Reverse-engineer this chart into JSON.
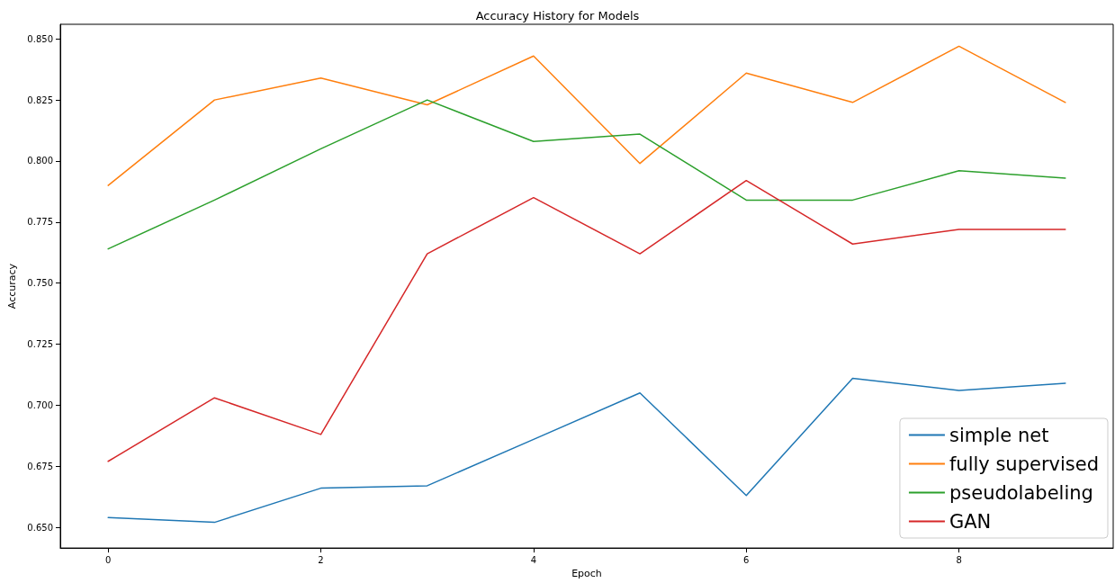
{
  "chart_data": {
    "type": "line",
    "title": "Accuracy History for Models",
    "xlabel": "Epoch",
    "ylabel": "Accuracy",
    "x": [
      0,
      1,
      2,
      3,
      4,
      5,
      6,
      7,
      8,
      9
    ],
    "series": [
      {
        "name": "simple net",
        "color": "#1f77b4",
        "values": [
          0.654,
          0.652,
          0.666,
          0.667,
          0.686,
          0.705,
          0.663,
          0.711,
          0.706,
          0.709
        ]
      },
      {
        "name": "fully supervised",
        "color": "#ff7f0e",
        "values": [
          0.79,
          0.825,
          0.834,
          0.823,
          0.843,
          0.799,
          0.836,
          0.824,
          0.847,
          0.824
        ]
      },
      {
        "name": "pseudolabeling",
        "color": "#2ca02c",
        "values": [
          0.764,
          0.784,
          0.805,
          0.825,
          0.808,
          0.811,
          0.784,
          0.784,
          0.796,
          0.793
        ]
      },
      {
        "name": "GAN",
        "color": "#d62728",
        "values": [
          0.677,
          0.703,
          0.688,
          0.762,
          0.785,
          0.762,
          0.792,
          0.766,
          0.772,
          0.772
        ]
      }
    ],
    "xlim": [
      -0.45,
      9.45
    ],
    "xticks": [
      0,
      2,
      4,
      6,
      8
    ],
    "ylim": [
      0.6415,
      0.856
    ],
    "yticks": [
      {
        "value": 0.65,
        "label": "0.650"
      },
      {
        "value": 0.675,
        "label": "0.675"
      },
      {
        "value": 0.7,
        "label": "0.700"
      },
      {
        "value": 0.725,
        "label": "0.725"
      },
      {
        "value": 0.75,
        "label": "0.750"
      },
      {
        "value": 0.775,
        "label": "0.775"
      },
      {
        "value": 0.8,
        "label": "0.800"
      },
      {
        "value": 0.825,
        "label": "0.825"
      },
      {
        "value": 0.85,
        "label": "0.850"
      }
    ],
    "grid": false,
    "legend": "bottom right",
    "marker": "none",
    "line_style": "solid"
  }
}
